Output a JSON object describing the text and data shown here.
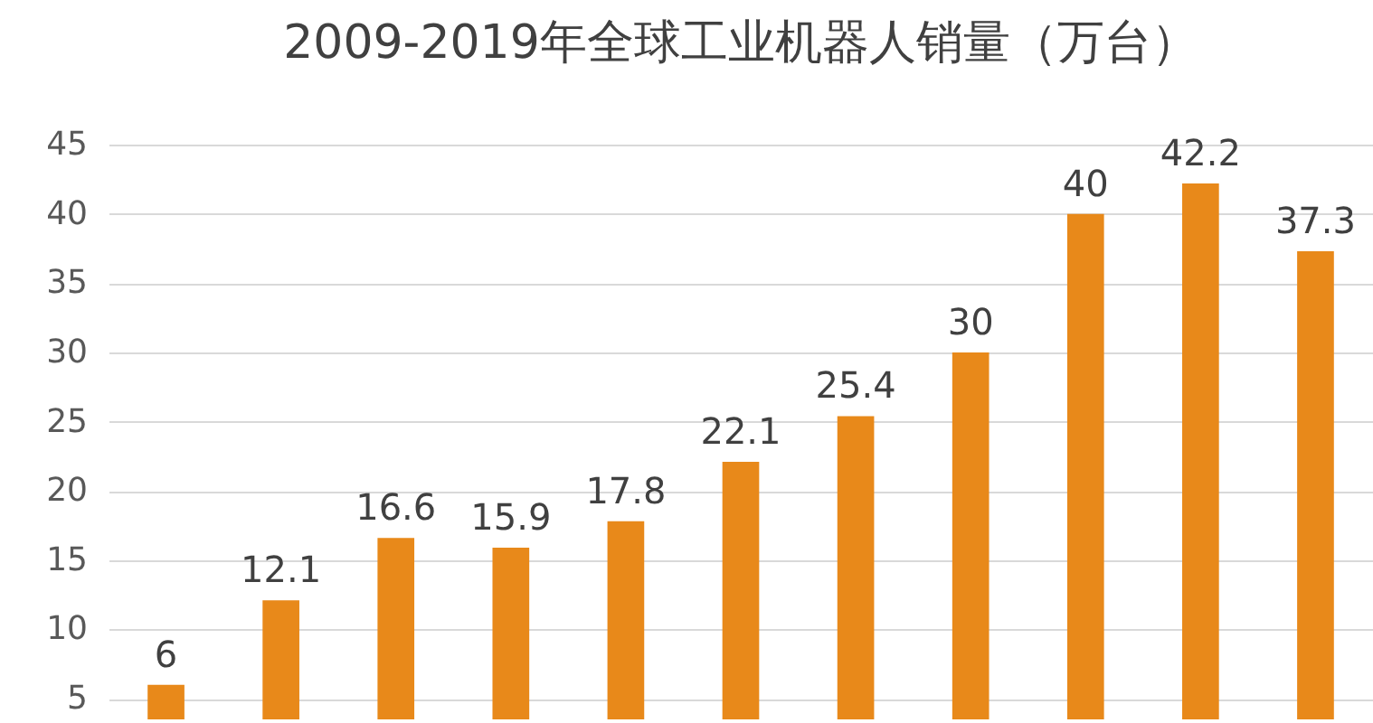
{
  "chart_data": {
    "type": "bar",
    "title": "2009-2019年全球工业机器人销量（万台）",
    "categories": [
      null,
      null,
      null,
      null,
      null,
      null,
      null,
      null,
      null,
      null,
      null
    ],
    "values": [
      6,
      12.1,
      16.6,
      15.9,
      17.8,
      22.1,
      25.4,
      30,
      40,
      42.2,
      37.3
    ],
    "color": "#e8891a",
    "ylim": [
      3.5,
      45
    ],
    "yticks": [
      5,
      10,
      15,
      20,
      25,
      30,
      35,
      40,
      45
    ],
    "grid": "y",
    "data_labels": true,
    "tick_labels": "y"
  }
}
